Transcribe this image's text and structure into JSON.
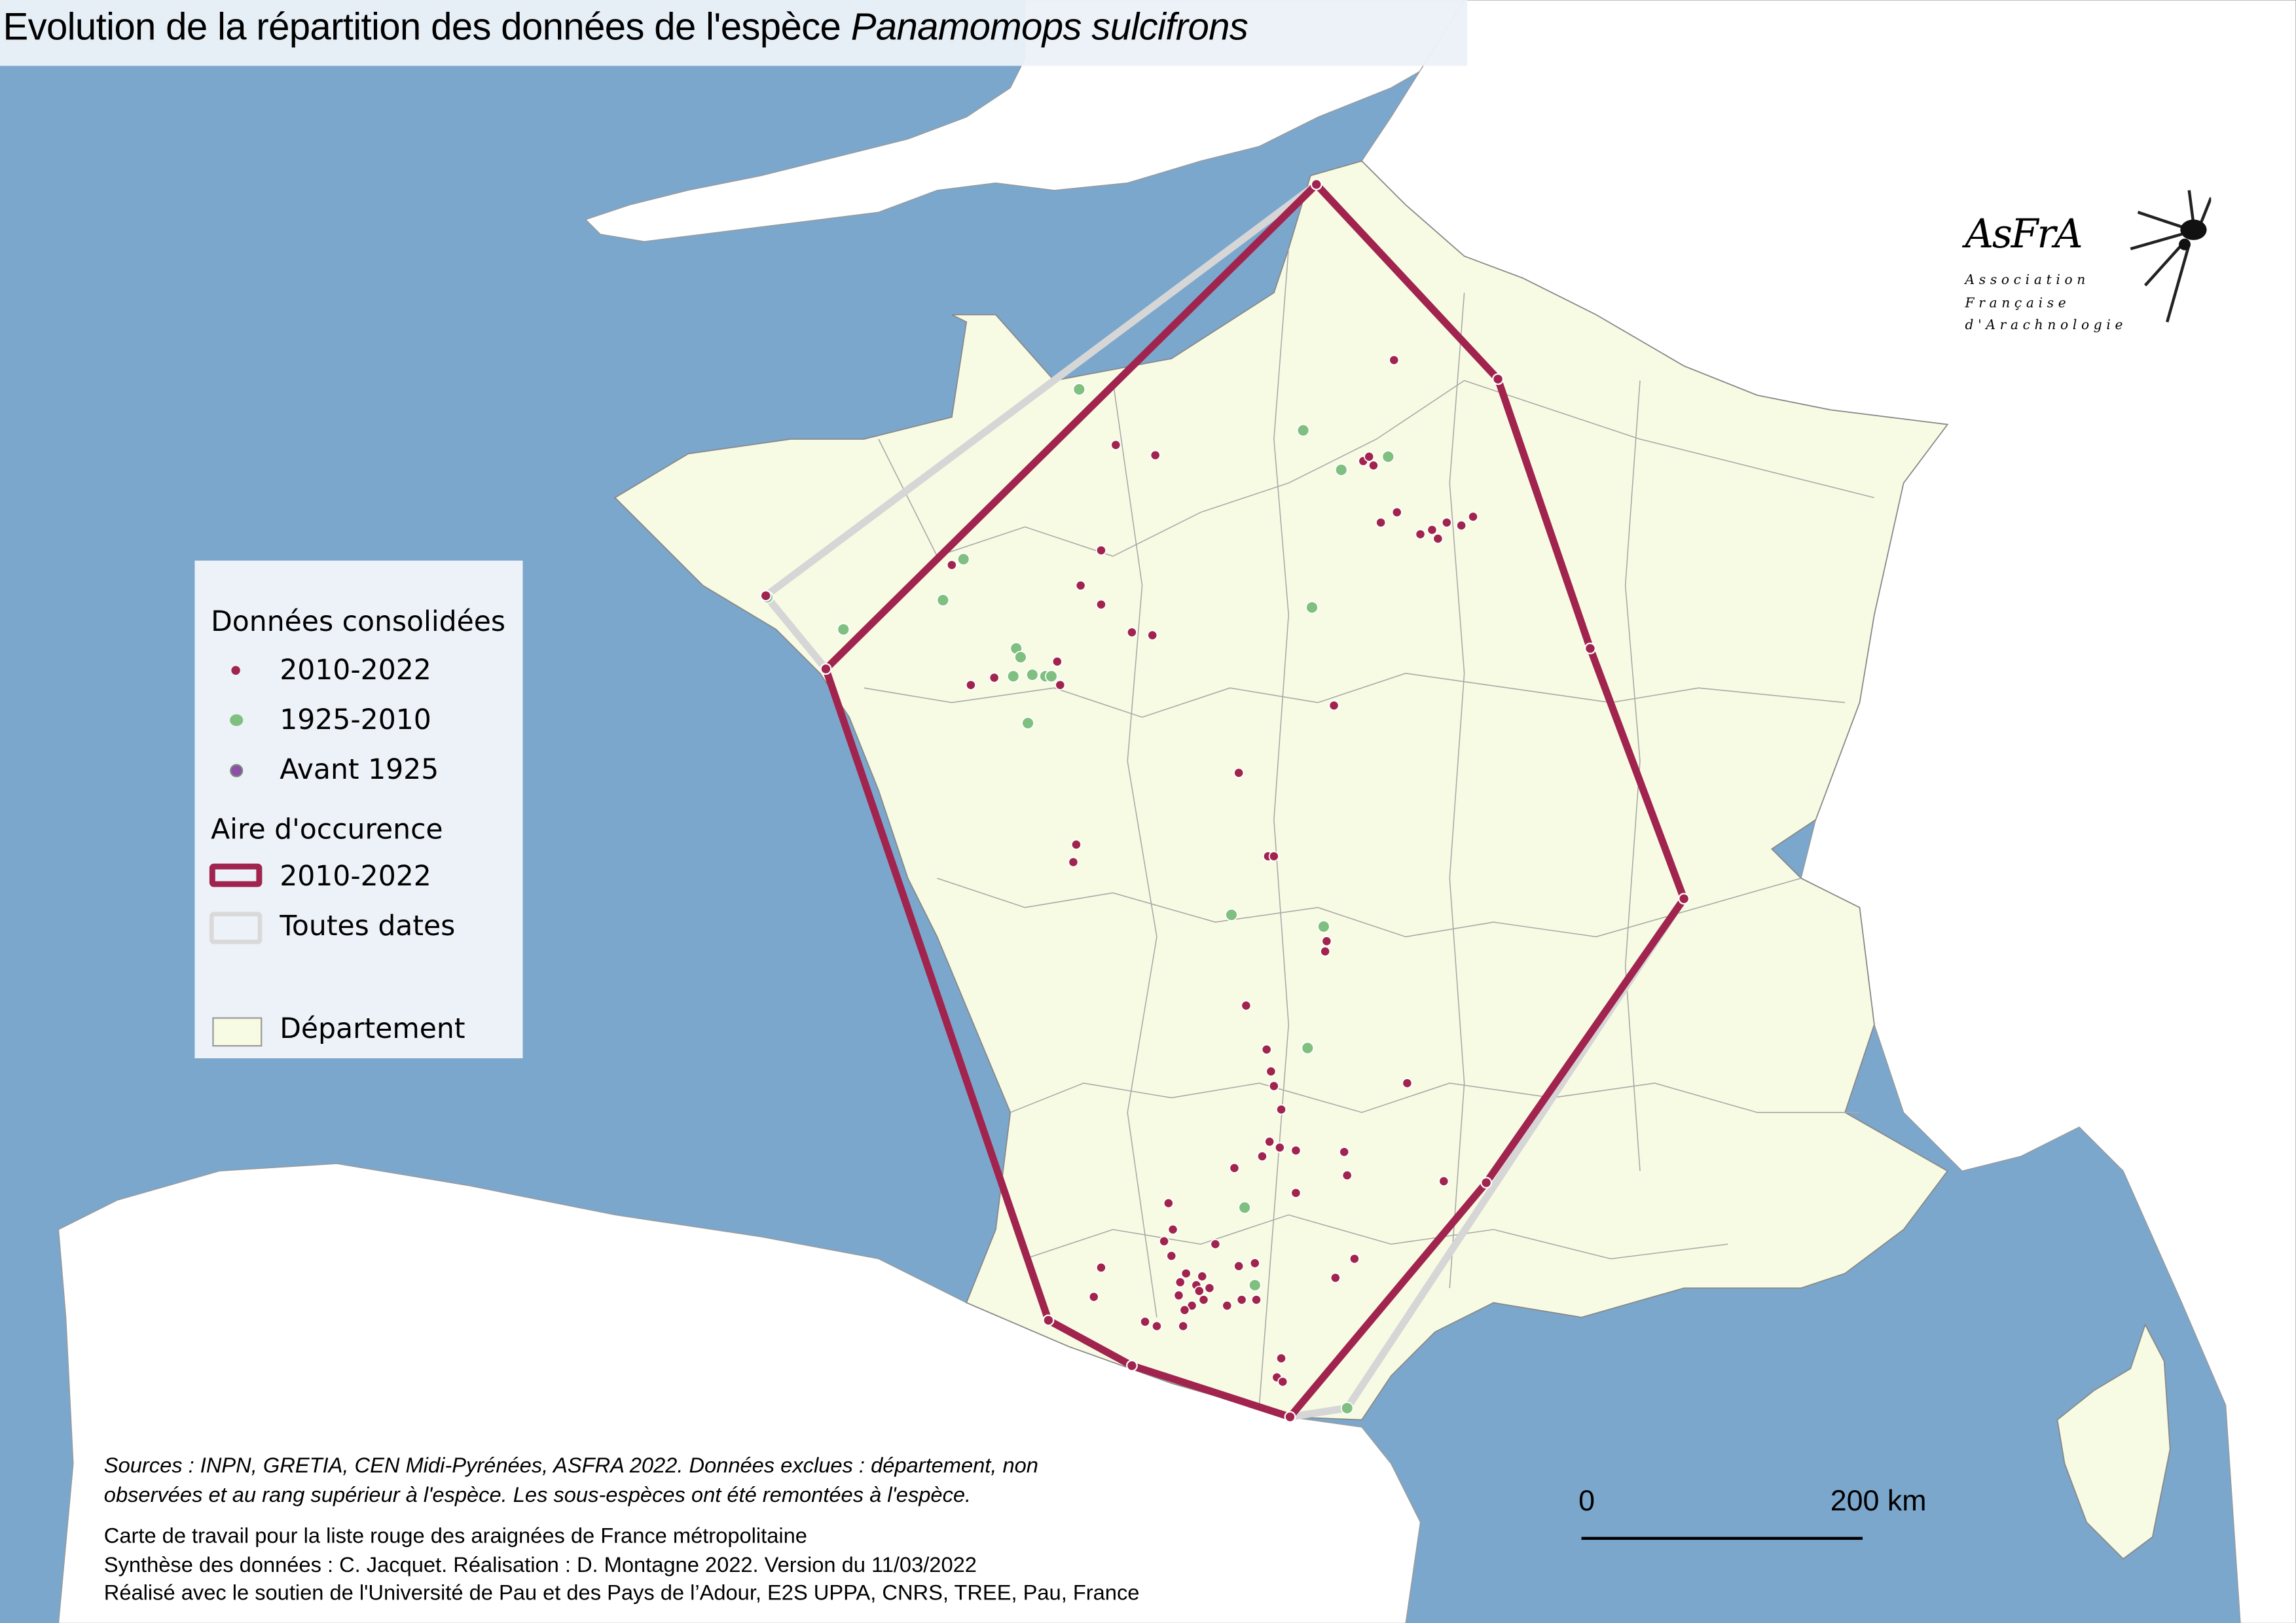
{
  "title": {
    "main": "Evolution de la répartition des données de l'espèce ",
    "species": "Panamomops sulcifrons"
  },
  "legend": {
    "points_heading": "Données consolidées",
    "points": [
      {
        "label": "2010-2022",
        "color": "#a0244e"
      },
      {
        "label": "1925-2010",
        "color": "#7fbf7f"
      },
      {
        "label": "Avant 1925",
        "color": "#8e4fa8"
      }
    ],
    "area_heading": "Aire d'occurence",
    "areas": [
      {
        "label": "2010-2022",
        "color": "#a0244e"
      },
      {
        "label": "Toutes dates",
        "color": "#d9d9d9"
      }
    ],
    "department_label": "Département",
    "department_color": "#f7fbe4"
  },
  "logo": {
    "name": "AsFrA",
    "line1": "Association",
    "line2": "Française",
    "line3": "d'Arachnologie"
  },
  "scale_bar": {
    "start": "0",
    "end": "200 km"
  },
  "sources": {
    "line1": "Sources : INPN, GRETIA, CEN Midi-Pyrénées, ASFRA 2022. Données exclues : département, non",
    "line2": "observées et au rang supérieur à l'espèce. Les sous-espèces ont été remontées à l'espèce."
  },
  "credits": {
    "line1": "Carte de travail pour la liste rouge des araignées de France métropolitaine",
    "line2": "Synthèse des données : C. Jacquet. Réalisation : D. Montagne 2022. Version du 11/03/2022",
    "line3": "Réalisé avec le soutien de l'Université de Pau et des Pays de l’Adour, E2S UPPA, CNRS, TREE, Pau, France"
  },
  "colors": {
    "sea": "#7ba7cc",
    "land_other": "#ffffff",
    "border": "#9a9a9a"
  }
}
